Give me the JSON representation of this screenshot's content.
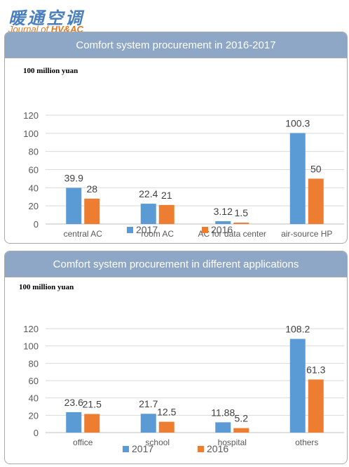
{
  "header": {
    "logo_cn": "暖通空调",
    "logo_en_prefix": "Journal of ",
    "logo_en_brand": "HV&AC"
  },
  "charts": [
    {
      "title": "Comfort system procurement in 2016-2017",
      "unit_label": "100 million yuan"
    },
    {
      "title": "Comfort system procurement in different applications",
      "unit_label": "100 million yuan"
    }
  ],
  "colors": {
    "series_2017": "#5b9bd5",
    "series_2016": "#ed7d31",
    "title_bar": "#8ea7c6"
  },
  "chart_data": [
    {
      "type": "bar",
      "title": "Comfort system procurement in 2016-2017",
      "ylabel": "100 million yuan",
      "ylim": [
        0,
        120
      ],
      "yticks": [
        0,
        20,
        40,
        60,
        80,
        100,
        120
      ],
      "categories": [
        "central AC",
        "room AC",
        "AC for data center",
        "air-source HP"
      ],
      "series": [
        {
          "name": "2017",
          "values": [
            39.9,
            22.4,
            3.12,
            100.3
          ],
          "labels": [
            "39.9",
            "22.4",
            "3.12",
            "100.3"
          ]
        },
        {
          "name": "2016",
          "values": [
            28,
            21,
            1.5,
            50
          ],
          "labels": [
            "28",
            "21",
            "1.5",
            "50"
          ]
        }
      ],
      "grid": true,
      "legend": "bottom"
    },
    {
      "type": "bar",
      "title": "Comfort system procurement in different applications",
      "ylabel": "100 million yuan",
      "ylim": [
        0,
        120
      ],
      "yticks": [
        0,
        20,
        40,
        60,
        80,
        100,
        120
      ],
      "categories": [
        "office",
        "school",
        "hospital",
        "others"
      ],
      "series": [
        {
          "name": "2017",
          "values": [
            23.6,
            21.7,
            11.88,
            108.2
          ],
          "labels": [
            "23.6",
            "21.7",
            "11.88",
            "108.2"
          ]
        },
        {
          "name": "2016",
          "values": [
            21.5,
            12.5,
            5.2,
            61.3
          ],
          "labels": [
            "21.5",
            "12.5",
            "5.2",
            "61.3"
          ]
        }
      ],
      "grid": true,
      "legend": "bottom"
    }
  ]
}
